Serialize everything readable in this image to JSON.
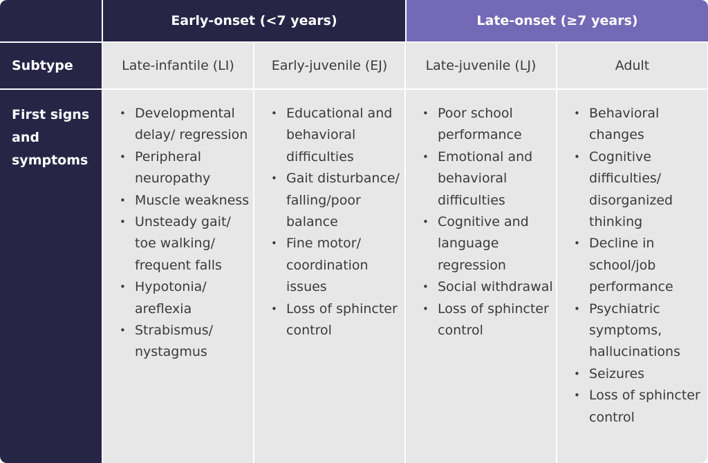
{
  "table": {
    "groups": {
      "early": "Early-onset (<7 years)",
      "late": "Late-onset (≥7 years)"
    },
    "subtype_label": "Subtype",
    "subtypes": [
      "Late-infantile (LI)",
      "Early-juvenile (EJ)",
      "Late-juvenile (LJ)",
      "Adult"
    ],
    "symptoms_label": "First signs and symptoms",
    "symptoms": [
      [
        "Developmental delay/ regression",
        "Peripheral neuropathy",
        "Muscle weakness",
        "Unsteady gait/ toe walking/ frequent falls",
        "Hypotonia/ areflexia",
        "Strabismus/ nystagmus"
      ],
      [
        "Educational and behavioral difficulties",
        "Gait disturbance/ falling/poor balance",
        "Fine motor/ coordination issues",
        "Loss of sphincter control"
      ],
      [
        "Poor school performance",
        "Emotional and behavioral difficulties",
        "Cognitive and language regression",
        "Social withdrawal",
        "Loss of sphincter control"
      ],
      [
        "Behavioral changes",
        "Cognitive difficulties/ disorganized thinking",
        "Decline in school/job performance",
        "Psychiatric symptoms, hallucinations",
        "Seizures",
        "Loss of sphincter control"
      ]
    ],
    "colors": {
      "dark_navy": "#272546",
      "purple": "#7369b6",
      "cell_gray": "#e7e7e8"
    }
  }
}
